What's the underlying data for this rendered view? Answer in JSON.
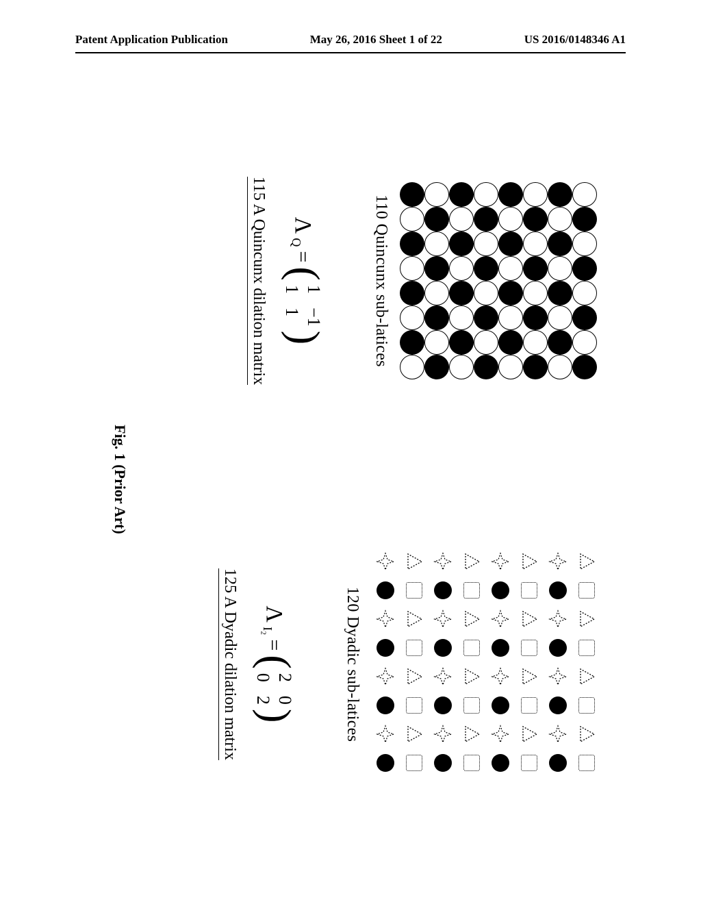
{
  "header": {
    "left": "Patent Application Publication",
    "center": "May 26, 2016  Sheet 1 of 22",
    "right": "US 2016/0148346 A1"
  },
  "quincunx": {
    "lattice_caption": "110 Quincunx sub-latices",
    "grid_size": 8,
    "black_color": "#000000",
    "white_color": "#ffffff",
    "border_color": "#000000",
    "matrix_symbol": "Λ",
    "matrix_subscript": "Q",
    "matrix_values": [
      [
        "1",
        "−1"
      ],
      [
        "1",
        "1"
      ]
    ],
    "matrix_caption": "115 A Quincunx dilation matrix"
  },
  "dyadic": {
    "lattice_caption": "120 Dyadic sub-latices",
    "grid_size": 8,
    "symbols": [
      "triangle",
      "square",
      "star",
      "circle"
    ],
    "colors": {
      "triangle_stroke": "#000000",
      "square_stroke": "#000000",
      "star_stroke": "#000000",
      "circle_fill": "#000000"
    },
    "matrix_symbol": "Λ",
    "matrix_subscript": "I₂",
    "matrix_values": [
      [
        "2",
        "0"
      ],
      [
        "0",
        "2"
      ]
    ],
    "matrix_caption": "125 A Dyadic dilation matrix"
  },
  "figure_caption": "Fig. 1 (Prior Art)",
  "page_background": "#ffffff",
  "text_color": "#000000",
  "font_family": "Times New Roman"
}
